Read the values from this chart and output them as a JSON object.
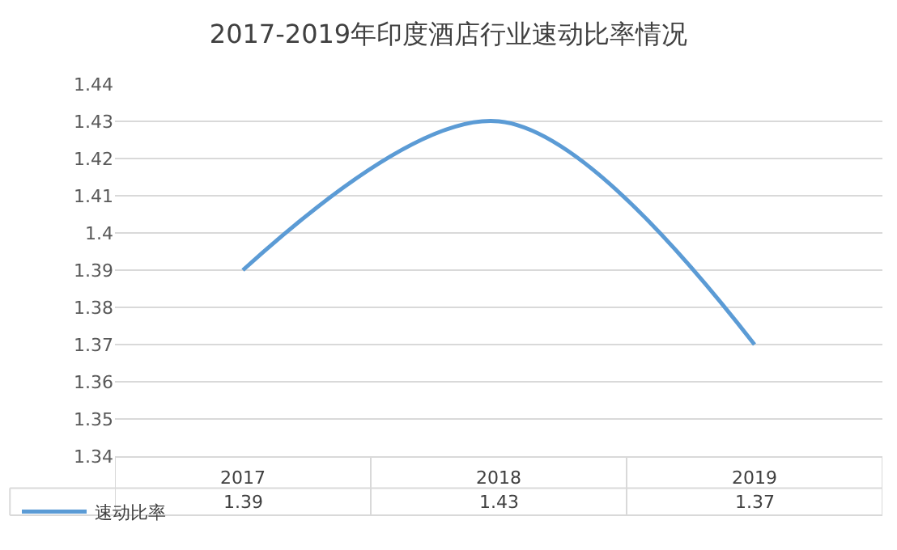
{
  "chart_data": {
    "type": "line",
    "title": "2017-2019年印度酒店行业速动比率情况",
    "categories": [
      "2017",
      "2018",
      "2019"
    ],
    "series": [
      {
        "name": "速动比率",
        "color": "#5b9bd5",
        "values": [
          1.39,
          1.43,
          1.37
        ]
      }
    ],
    "ylim": [
      1.34,
      1.44
    ],
    "yticks": [
      1.34,
      1.35,
      1.36,
      1.37,
      1.38,
      1.39,
      1.4,
      1.41,
      1.42,
      1.43,
      1.44
    ],
    "grid": "y",
    "legend": "bottom left",
    "data_labels": true,
    "marker": "none",
    "line_style": "solid"
  }
}
